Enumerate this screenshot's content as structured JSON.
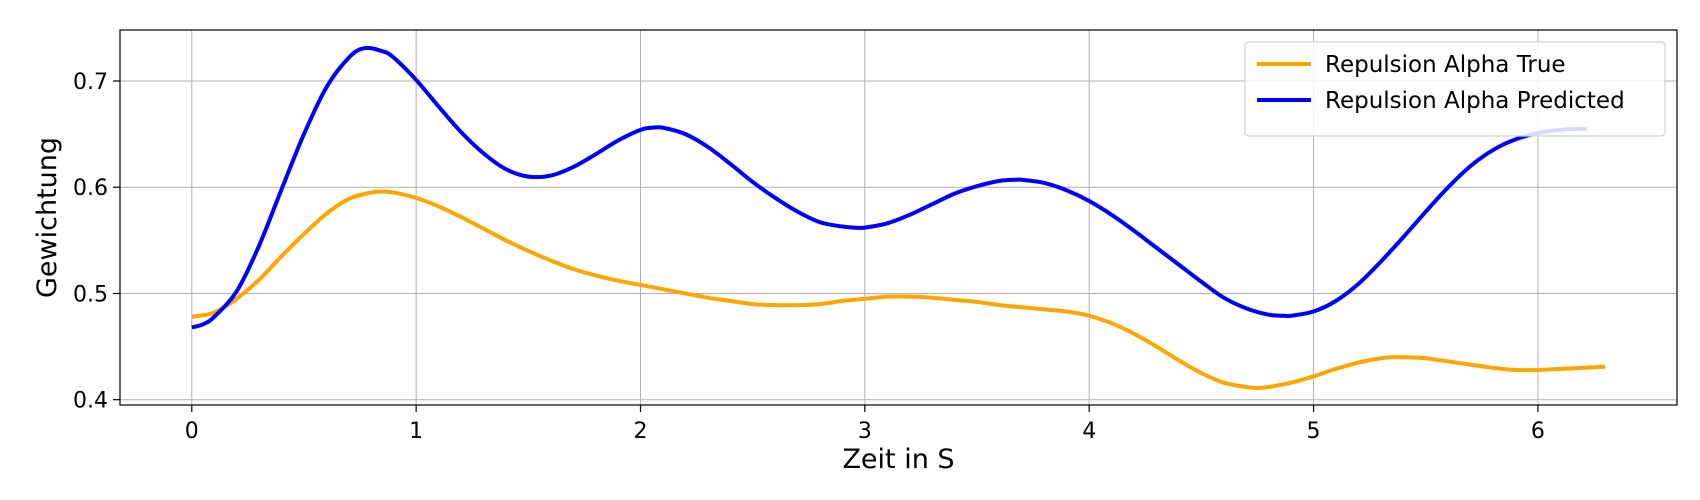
{
  "chart_data": {
    "type": "line",
    "title": "",
    "xlabel": "Zeit in S",
    "ylabel": "Gewichtung",
    "xlim": [
      -0.32,
      6.62
    ],
    "ylim": [
      0.395,
      0.748
    ],
    "xticks": [
      0,
      1,
      2,
      3,
      4,
      5,
      6
    ],
    "yticks": [
      0.4,
      0.5,
      0.6,
      0.7
    ],
    "xtick_labels": [
      "0",
      "1",
      "2",
      "3",
      "4",
      "5",
      "6"
    ],
    "ytick_labels": [
      "0.4",
      "0.5",
      "0.6",
      "0.7"
    ],
    "grid": true,
    "legend_position": "top-right",
    "series": [
      {
        "name": "Repulsion Alpha True",
        "color": "#FFA500",
        "x": [
          0,
          0.1,
          0.2,
          0.3,
          0.4,
          0.5,
          0.6,
          0.7,
          0.8,
          0.85,
          0.9,
          1.0,
          1.1,
          1.2,
          1.3,
          1.4,
          1.5,
          1.6,
          1.7,
          1.8,
          1.9,
          2.0,
          2.1,
          2.2,
          2.3,
          2.4,
          2.5,
          2.6,
          2.7,
          2.8,
          2.9,
          3.0,
          3.1,
          3.2,
          3.3,
          3.4,
          3.5,
          3.6,
          3.7,
          3.8,
          3.9,
          4.0,
          4.1,
          4.2,
          4.3,
          4.4,
          4.5,
          4.6,
          4.7,
          4.75,
          4.8,
          4.9,
          5.0,
          5.1,
          5.2,
          5.3,
          5.35,
          5.4,
          5.5,
          5.6,
          5.7,
          5.8,
          5.9,
          6.0,
          6.1,
          6.2,
          6.3
        ],
        "y": [
          0.478,
          0.482,
          0.495,
          0.513,
          0.535,
          0.556,
          0.575,
          0.589,
          0.595,
          0.596,
          0.595,
          0.59,
          0.582,
          0.572,
          0.561,
          0.55,
          0.54,
          0.531,
          0.523,
          0.517,
          0.512,
          0.508,
          0.504,
          0.5,
          0.496,
          0.493,
          0.49,
          0.489,
          0.489,
          0.49,
          0.493,
          0.495,
          0.497,
          0.497,
          0.496,
          0.494,
          0.492,
          0.489,
          0.487,
          0.485,
          0.483,
          0.479,
          0.472,
          0.462,
          0.45,
          0.437,
          0.425,
          0.416,
          0.412,
          0.411,
          0.412,
          0.416,
          0.422,
          0.429,
          0.435,
          0.439,
          0.44,
          0.44,
          0.439,
          0.436,
          0.433,
          0.43,
          0.428,
          0.428,
          0.429,
          0.43,
          0.431
        ]
      },
      {
        "name": "Repulsion Alpha Predicted",
        "color": "#0000FF",
        "x": [
          0,
          0.05,
          0.1,
          0.2,
          0.3,
          0.4,
          0.5,
          0.6,
          0.7,
          0.77,
          0.85,
          0.9,
          1.0,
          1.1,
          1.2,
          1.3,
          1.4,
          1.5,
          1.6,
          1.7,
          1.8,
          1.9,
          2.0,
          2.05,
          2.1,
          2.2,
          2.3,
          2.4,
          2.5,
          2.6,
          2.7,
          2.8,
          2.9,
          2.95,
          3.0,
          3.1,
          3.2,
          3.3,
          3.4,
          3.5,
          3.6,
          3.67,
          3.7,
          3.8,
          3.9,
          4.0,
          4.1,
          4.2,
          4.3,
          4.4,
          4.5,
          4.6,
          4.7,
          4.8,
          4.87,
          4.9,
          5.0,
          5.1,
          5.2,
          5.3,
          5.4,
          5.5,
          5.6,
          5.7,
          5.8,
          5.9,
          6.0,
          6.1,
          6.2,
          6.22
        ],
        "y": [
          0.468,
          0.471,
          0.478,
          0.502,
          0.545,
          0.598,
          0.65,
          0.694,
          0.722,
          0.731,
          0.728,
          0.722,
          0.701,
          0.676,
          0.652,
          0.632,
          0.617,
          0.61,
          0.611,
          0.619,
          0.631,
          0.644,
          0.654,
          0.656,
          0.656,
          0.65,
          0.638,
          0.622,
          0.605,
          0.59,
          0.577,
          0.567,
          0.563,
          0.562,
          0.562,
          0.566,
          0.574,
          0.584,
          0.594,
          0.601,
          0.606,
          0.607,
          0.607,
          0.604,
          0.597,
          0.587,
          0.574,
          0.559,
          0.543,
          0.527,
          0.511,
          0.496,
          0.486,
          0.48,
          0.479,
          0.479,
          0.483,
          0.493,
          0.509,
          0.53,
          0.553,
          0.577,
          0.6,
          0.62,
          0.635,
          0.645,
          0.651,
          0.654,
          0.655,
          0.655
        ]
      }
    ]
  }
}
